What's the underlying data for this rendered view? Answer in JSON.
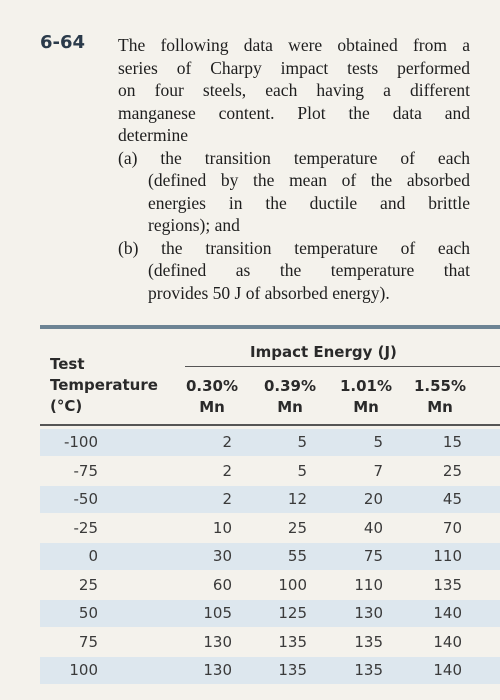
{
  "problem": {
    "number": "6-64",
    "lines": [
      "The following data were obtained from a",
      "series of Charpy impact tests performed",
      "on four steels, each having a different",
      "manganese content. Plot the data and",
      "determine"
    ],
    "part_a": [
      "(a) the transition temperature of each",
      "(defined by the mean of the absorbed",
      "energies in the ductile and brittle",
      "regions); and"
    ],
    "part_b": [
      "(b) the transition temperature of each",
      "(defined as the temperature that",
      "provides 50 J of absorbed energy)."
    ]
  },
  "table": {
    "row_header": [
      "Test",
      "Temperature",
      "(°C)"
    ],
    "group_header": "Impact Energy (J)",
    "columns": [
      [
        "0.30%",
        "Mn"
      ],
      [
        "0.39%",
        "Mn"
      ],
      [
        "1.01%",
        "Mn"
      ],
      [
        "1.55%",
        "Mn"
      ]
    ],
    "rows": [
      [
        -100,
        2,
        5,
        5,
        15
      ],
      [
        -75,
        2,
        5,
        7,
        25
      ],
      [
        -50,
        2,
        12,
        20,
        45
      ],
      [
        -25,
        10,
        25,
        40,
        70
      ],
      [
        0,
        30,
        55,
        75,
        110
      ],
      [
        25,
        60,
        100,
        110,
        135
      ],
      [
        50,
        105,
        125,
        130,
        140
      ],
      [
        75,
        130,
        135,
        135,
        140
      ],
      [
        100,
        130,
        135,
        135,
        140
      ]
    ]
  }
}
